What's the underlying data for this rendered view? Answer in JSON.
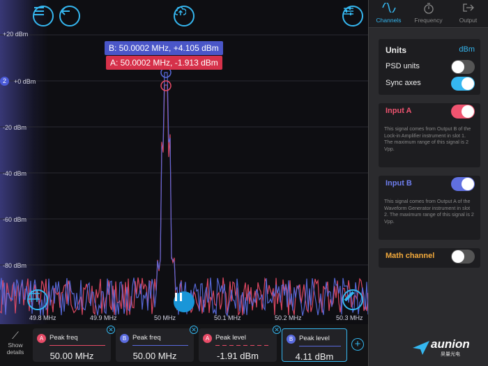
{
  "plot": {
    "y_labels": [
      "+20 dBm",
      "+0 dBm",
      "-20 dBm",
      "-40 dBm",
      "-60 dBm",
      "-80 dBm"
    ],
    "x_labels": [
      "49.8 MHz",
      "49.9 MHz",
      "50 MHz",
      "50.1 MHz",
      "50.2 MHz",
      "50.3 MHz"
    ],
    "marker_index": "2",
    "cursor_b": "B: 50.0002 MHz, +4.105 dBm",
    "cursor_a": "A: 50.0002 MHz, -1.913 dBm",
    "colors": {
      "input_a": "#e84b67",
      "input_b": "#5a6bde",
      "accent": "#35b7f0"
    }
  },
  "toolbar": {
    "menu_icon": "menu-icon",
    "back_icon": "back-arrow-icon",
    "cloud_icon": "cloud-upload-icon",
    "settings_icon": "sliders-icon",
    "crosshair_icon": "crosshair-icon",
    "pause_icon": "pause-icon",
    "ruler_icon": "ruler-icon"
  },
  "bottom": {
    "show_details": "Show details",
    "measurements": [
      {
        "channel": "A",
        "label": "Peak freq",
        "value": "50.00 MHz"
      },
      {
        "channel": "B",
        "label": "Peak freq",
        "value": "50.00 MHz"
      },
      {
        "channel": "A",
        "label": "Peak level",
        "value": "-1.91 dBm"
      },
      {
        "channel": "B",
        "label": "Peak level",
        "value": "4.11 dBm"
      }
    ]
  },
  "panel": {
    "tabs": [
      {
        "label": "Channels",
        "active": true
      },
      {
        "label": "Frequency",
        "active": false
      },
      {
        "label": "Output",
        "active": false
      }
    ],
    "units_label": "Units",
    "units_value": "dBm",
    "psd_units": "PSD units",
    "sync_axes": "Sync axes",
    "input_a": {
      "title": "Input A",
      "desc": "This signal comes from Output B of the Lock-in Amplifier instrument in slot 1. The maximum range of this signal is 2 Vpp."
    },
    "input_b": {
      "title": "Input B",
      "desc": "This signal comes from Output A of the Waveform Generator instrument in slot 2. The maximum range of this signal is 2 Vpp."
    },
    "math_channel": "Math channel"
  },
  "logo": {
    "text": "aunion",
    "subtext": "昊量光电"
  }
}
